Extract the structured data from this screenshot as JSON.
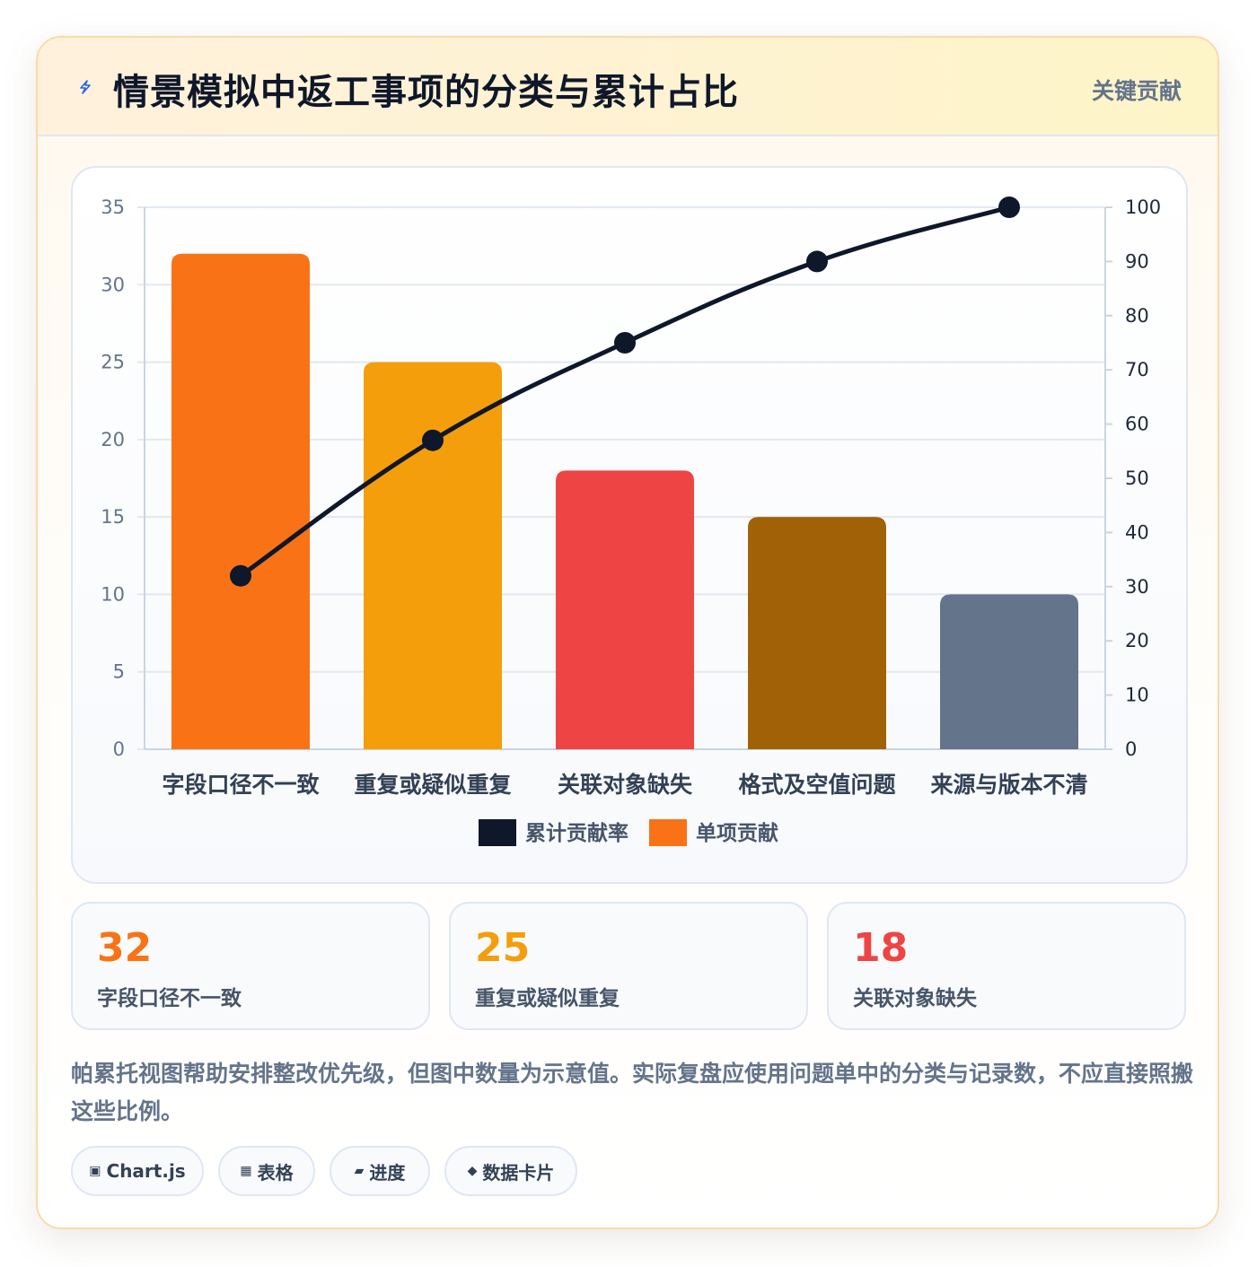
{
  "header": {
    "title": "情景模拟中返工事项的分类与累计占比",
    "badge": "关键贡献",
    "icon": "lightning-bolt-icon"
  },
  "chart_data": {
    "type": "bar",
    "categories": [
      "字段口径不一致",
      "重复或疑似重复",
      "关联对象缺失",
      "格式及空值问题",
      "来源与版本不清"
    ],
    "series": [
      {
        "name": "单项贡献",
        "type": "bar",
        "axis": "left",
        "values": [
          32,
          25,
          18,
          15,
          10
        ],
        "colors": [
          "#f97316",
          "#f59e0b",
          "#ef4444",
          "#a16207",
          "#64748b"
        ]
      },
      {
        "name": "累计贡献率",
        "type": "line",
        "axis": "right",
        "values": [
          32,
          57,
          75,
          90,
          100
        ],
        "color": "#0f172a"
      }
    ],
    "y_left": {
      "min": 0,
      "max": 35,
      "ticks": [
        0,
        5,
        10,
        15,
        20,
        25,
        30,
        35
      ]
    },
    "y_right": {
      "min": 0,
      "max": 100,
      "ticks": [
        0,
        10,
        20,
        30,
        40,
        50,
        60,
        70,
        80,
        90,
        100
      ]
    },
    "legend": [
      {
        "label": "累计贡献率",
        "color": "#0f172a"
      },
      {
        "label": "单项贡献",
        "color": "#f97316"
      }
    ],
    "legend_position": "bottom",
    "grid": true
  },
  "stats": [
    {
      "value": "32",
      "label": "字段口径不一致",
      "color": "#f97316"
    },
    {
      "value": "25",
      "label": "重复或疑似重复",
      "color": "#f59e0b"
    },
    {
      "value": "18",
      "label": "关联对象缺失",
      "color": "#ef4444"
    }
  ],
  "note": "帕累托视图帮助安排整改优先级，但图中数量为示意值。实际复盘应使用问题单中的分类与记录数，不应直接照搬这些比例。",
  "tags": [
    {
      "icon": "▣",
      "label": "Chart.js"
    },
    {
      "icon": "▦",
      "label": "表格"
    },
    {
      "icon": "▰",
      "label": "进度"
    },
    {
      "icon": "◆",
      "label": "数据卡片"
    }
  ]
}
